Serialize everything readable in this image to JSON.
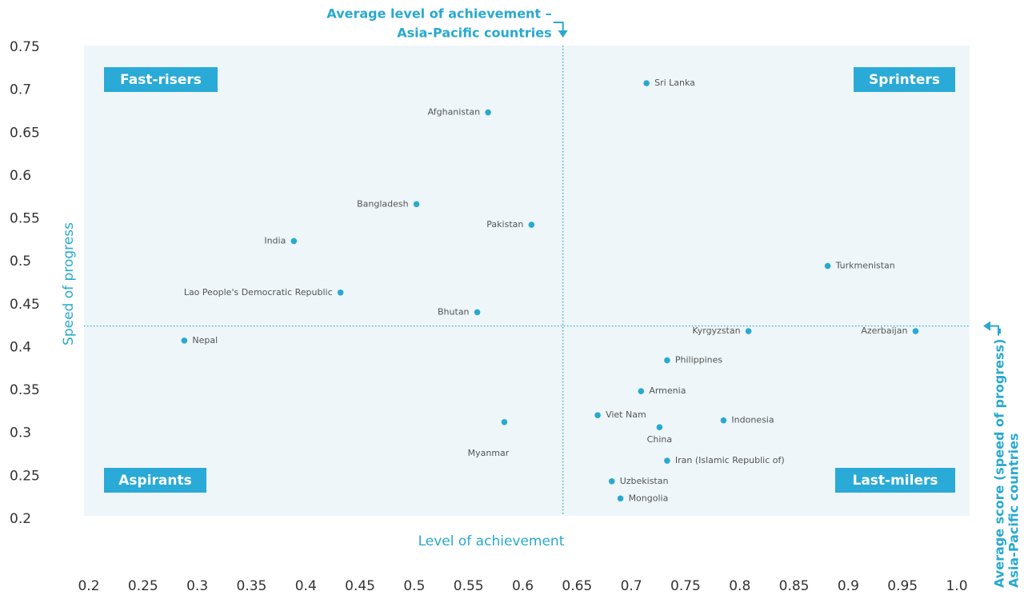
{
  "chart_data": {
    "type": "scatter",
    "x_label": "Level of achievement",
    "y_label": "Speed of progress",
    "color": "#29a9cf",
    "labels": [
      "Sri Lanka",
      "Afghanistan",
      "Bangladesh",
      "Pakistan",
      "India",
      "Turkmenistan",
      "Lao People's Democratic Republic",
      "Bhutan",
      "Kyrgyzstan",
      "Azerbaijan",
      "Nepal",
      "Philippines",
      "Armenia",
      "Viet Nam",
      "Indonesia",
      "Myanmar",
      "China",
      "Iran (Islamic Republic of)",
      "Uzbekistan",
      "Mongolia"
    ],
    "x": [
      0.714,
      0.568,
      0.502,
      0.608,
      0.389,
      0.881,
      0.432,
      0.558,
      0.808,
      0.962,
      0.288,
      0.733,
      0.709,
      0.669,
      0.785,
      0.583,
      0.726,
      0.733,
      0.682,
      0.69
    ],
    "values": [
      0.708,
      0.674,
      0.567,
      0.543,
      0.524,
      0.495,
      0.464,
      0.441,
      0.419,
      0.419,
      0.408,
      0.385,
      0.349,
      0.321,
      0.315,
      0.313,
      0.307,
      0.268,
      0.244,
      0.224
    ],
    "xlim": [
      0.2,
      1.0
    ],
    "ylim": [
      0.2,
      0.75
    ],
    "xticks": [
      0.2,
      0.25,
      0.3,
      0.35,
      0.4,
      0.45,
      0.5,
      0.55,
      0.6,
      0.65,
      0.7,
      0.75,
      0.8,
      0.85,
      0.9,
      0.95,
      {
        "value": 1.0,
        "label": "1.0"
      }
    ],
    "yticks": [
      0.2,
      0.25,
      0.3,
      0.35,
      0.4,
      0.45,
      0.5,
      0.55,
      0.6,
      0.65,
      0.7,
      0.75
    ],
    "avg_x": 0.637,
    "avg_y": 0.425,
    "avg_x_annotation": [
      "Average level of achievement –",
      "Asia-Pacific countries"
    ],
    "avg_y_annotation": [
      "Average score (speed of progress) –",
      "Asia-Pacific countries"
    ],
    "quadrants": [
      "Fast-risers",
      "Sprinters",
      "Aspirants",
      "Last-milers"
    ]
  }
}
